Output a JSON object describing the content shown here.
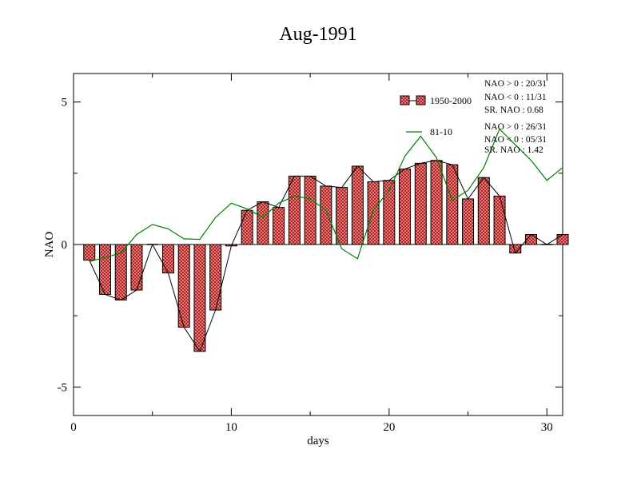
{
  "chart_data": {
    "type": "bar",
    "title": "Aug-1991",
    "xlabel": "days",
    "ylabel": "NAO",
    "xlim": [
      0,
      31
    ],
    "ylim": [
      -6,
      6
    ],
    "x_ticks": [
      0,
      10,
      20,
      30
    ],
    "y_ticks": [
      -5,
      0,
      5
    ],
    "x_tick_labels": [
      "0",
      "10",
      "20",
      "30"
    ],
    "y_tick_labels": [
      "-5",
      "0",
      "5"
    ],
    "x": [
      1,
      2,
      3,
      4,
      5,
      6,
      7,
      8,
      9,
      10,
      11,
      12,
      13,
      14,
      15,
      16,
      17,
      18,
      19,
      20,
      21,
      22,
      23,
      24,
      25,
      26,
      27,
      28,
      29,
      30,
      31
    ],
    "series": [
      {
        "name": "1950-2000",
        "type": "bar",
        "values": [
          -0.55,
          -1.75,
          -1.95,
          -1.6,
          0,
          -1.0,
          -2.9,
          -3.75,
          -2.3,
          -0.05,
          1.2,
          1.5,
          1.3,
          2.4,
          2.4,
          2.05,
          2.0,
          2.75,
          2.2,
          2.25,
          2.65,
          2.85,
          2.95,
          2.8,
          1.6,
          2.35,
          1.7,
          -0.3,
          0.35,
          0,
          0.35
        ]
      },
      {
        "name": "81-10",
        "type": "line",
        "values": [
          -0.6,
          -0.45,
          -0.3,
          0.35,
          0.7,
          0.55,
          0.2,
          0.18,
          0.95,
          1.45,
          1.25,
          0.95,
          1.45,
          1.7,
          1.6,
          1.2,
          -0.15,
          -0.5,
          1.2,
          1.9,
          3.1,
          3.8,
          3.05,
          1.55,
          1.9,
          2.7,
          4.05,
          3.5,
          2.95,
          2.25,
          2.7
        ]
      }
    ],
    "stats": {
      "group1": [
        "NAO > 0 : 20/31",
        "NAO < 0 : 11/31",
        "SR. NAO :  0.68"
      ],
      "group2": [
        "NAO > 0 : 26/31",
        "NAO < 0 : 05/31",
        "SR. NAO :  1.42"
      ]
    },
    "colors": {
      "bar_fill": "#e06666",
      "bar_hatch": "#b03030",
      "line_81_10": "#008000",
      "bar_outline": "#000000"
    },
    "grid": false,
    "legend_position": "top-right"
  }
}
